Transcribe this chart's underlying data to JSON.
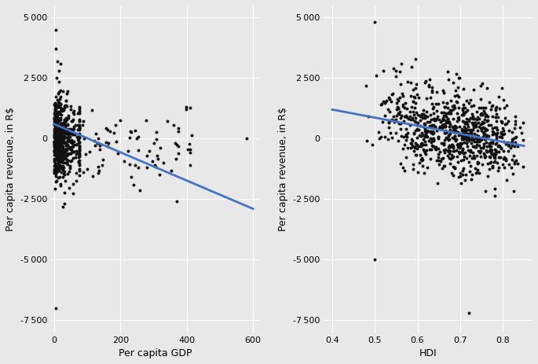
{
  "background_color": "#e8e8e8",
  "plot_bg_color": "#e8e8e8",
  "grid_color": "#ffffff",
  "point_color": "#111111",
  "line_color": "#4472c4",
  "point_size": 8,
  "line_width": 2.0,
  "plot_a": {
    "xlabel": "Per capita GDP",
    "ylabel": "Per capita revenue, in R$",
    "xlim": [
      -10,
      620
    ],
    "ylim": [
      -8000,
      5500
    ],
    "xticks": [
      0,
      200,
      400,
      600
    ],
    "yticks": [
      -7500,
      -5000,
      -2500,
      0,
      2500,
      5000
    ],
    "line_x": [
      0,
      600
    ],
    "line_y": [
      600,
      -2900
    ],
    "seed": 42,
    "n_cluster1": 600,
    "n_cluster2": 80
  },
  "plot_b": {
    "xlabel": "HDI",
    "ylabel": "Per capita revenue, in R$",
    "xlim": [
      0.38,
      0.87
    ],
    "ylim": [
      -8000,
      5500
    ],
    "xticks": [
      0.4,
      0.5,
      0.6,
      0.7,
      0.8
    ],
    "yticks": [
      -7500,
      -5000,
      -2500,
      0,
      2500,
      5000
    ],
    "line_x": [
      0.4,
      0.85
    ],
    "line_y": [
      1200,
      -300
    ],
    "seed": 123,
    "n_points": 800
  }
}
